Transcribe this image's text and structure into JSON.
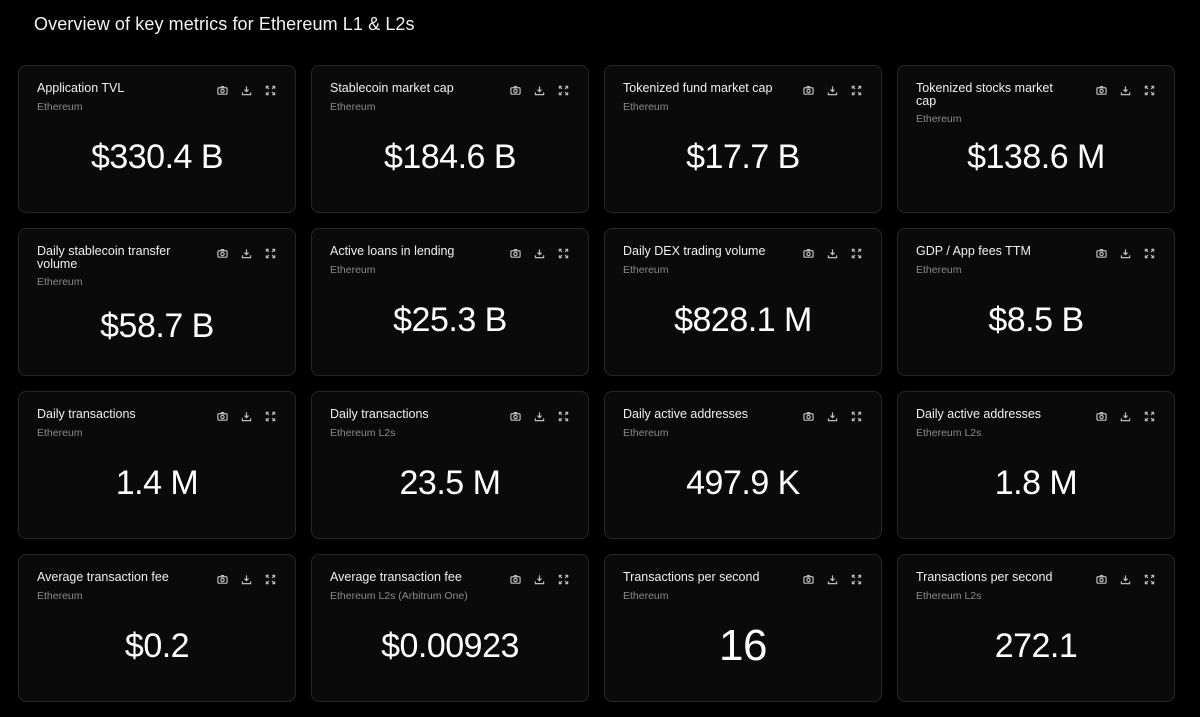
{
  "page_title": "Overview of key metrics for Ethereum L1 & L2s",
  "icons": [
    "camera-icon",
    "download-icon",
    "expand-icon"
  ],
  "cards": [
    {
      "title": "Application TVL",
      "subtitle": "Ethereum",
      "value": "$330.4 B"
    },
    {
      "title": "Stablecoin market cap",
      "subtitle": "Ethereum",
      "value": "$184.6 B"
    },
    {
      "title": "Tokenized fund market cap",
      "subtitle": "Ethereum",
      "value": "$17.7 B"
    },
    {
      "title": "Tokenized stocks market cap",
      "subtitle": "Ethereum",
      "value": "$138.6 M"
    },
    {
      "title": "Daily stablecoin transfer volume",
      "subtitle": "Ethereum",
      "value": "$58.7 B"
    },
    {
      "title": "Active loans in lending",
      "subtitle": "Ethereum",
      "value": "$25.3 B"
    },
    {
      "title": "Daily DEX trading volume",
      "subtitle": "Ethereum",
      "value": "$828.1 M"
    },
    {
      "title": "GDP / App fees TTM",
      "subtitle": "Ethereum",
      "value": "$8.5 B"
    },
    {
      "title": "Daily transactions",
      "subtitle": "Ethereum",
      "value": "1.4 M"
    },
    {
      "title": "Daily transactions",
      "subtitle": "Ethereum L2s",
      "value": "23.5 M"
    },
    {
      "title": "Daily active addresses",
      "subtitle": "Ethereum",
      "value": "497.9 K"
    },
    {
      "title": "Daily active addresses",
      "subtitle": "Ethereum L2s",
      "value": "1.8 M"
    },
    {
      "title": "Average transaction fee",
      "subtitle": "Ethereum",
      "value": "$0.2"
    },
    {
      "title": "Average transaction fee",
      "subtitle": "Ethereum L2s (Arbitrum One)",
      "value": "$0.00923"
    },
    {
      "title": "Transactions per second",
      "subtitle": "Ethereum",
      "value": "16"
    },
    {
      "title": "Transactions per second",
      "subtitle": "Ethereum L2s",
      "value": "272.1"
    }
  ]
}
